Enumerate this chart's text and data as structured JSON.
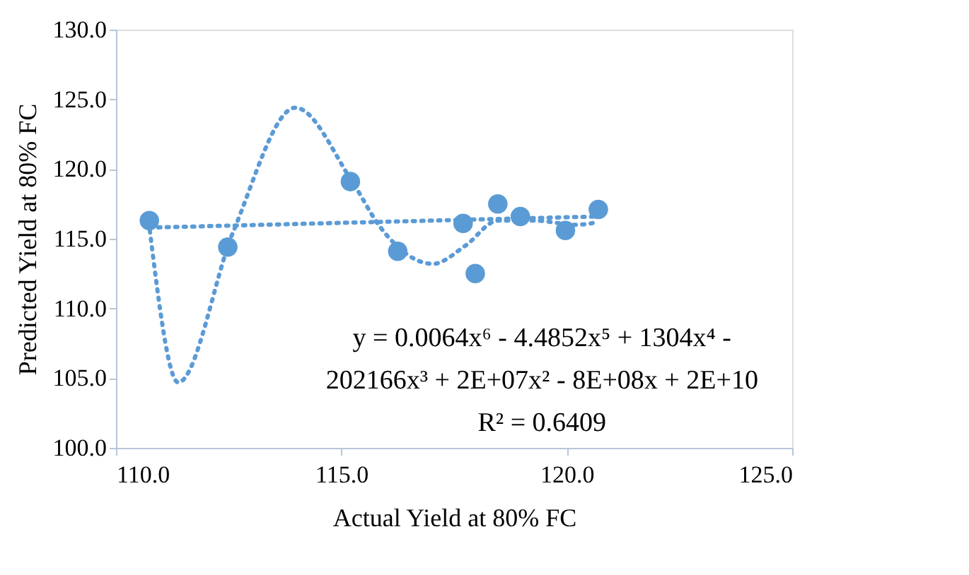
{
  "chart_data": {
    "type": "scatter",
    "xlabel": "Actual Yield at 80% FC",
    "ylabel": "Predicted Yield at 80% FC",
    "xlim": [
      110,
      125
    ],
    "xticks": [
      {
        "value": 110,
        "label": "110.0"
      },
      {
        "value": 115,
        "label": "115.0"
      },
      {
        "value": 120,
        "label": "120.0"
      },
      {
        "value": 125,
        "label": "125.0"
      }
    ],
    "ylim": [
      100,
      130
    ],
    "yticks": [
      {
        "value": 100,
        "label": "100.0"
      },
      {
        "value": 105,
        "label": "105.0"
      },
      {
        "value": 110,
        "label": "110.0"
      },
      {
        "value": 115,
        "label": "115.0"
      },
      {
        "value": 120,
        "label": "120.0"
      },
      {
        "value": 125,
        "label": "125.0"
      },
      {
        "value": 130,
        "label": "130.0"
      }
    ],
    "grid": false,
    "series": [
      {
        "marker": "circle",
        "color": "#5b9bd5",
        "x": [
          110.74,
          112.48,
          115.2,
          116.25,
          117.7,
          117.97,
          118.47,
          118.97,
          119.97,
          120.7
        ],
        "values": [
          116.3,
          114.4,
          119.1,
          114.1,
          116.1,
          112.5,
          117.5,
          116.6,
          115.6,
          117.1
        ]
      },
      {
        "type": "line",
        "marker": "none",
        "line_style": "dotted",
        "color": "#5b9bd5",
        "x": [
          110.75,
          111.38,
          112.6,
          113.98,
          115.24,
          115.87,
          117.03,
          117.75,
          118.47,
          119.3,
          120.2,
          120.7
        ],
        "values": [
          115.6,
          104.7,
          115.5,
          124.4,
          119.1,
          115.8,
          113.2,
          114.5,
          116.3,
          116.3,
          116.0,
          116.2
        ]
      },
      {
        "type": "line",
        "marker": "none",
        "line_style": "dotted",
        "color": "#5b9bd5",
        "x": [
          110.75,
          120.7
        ],
        "values": [
          115.8,
          116.6
        ]
      }
    ],
    "annotations": [
      "y = 0.0064x⁶ - 4.4852x⁵ + 1304x⁴ -",
      "202166x³ + 2E+07x² - 8E+08x + 2E+10",
      "R² = 0.6409"
    ]
  }
}
